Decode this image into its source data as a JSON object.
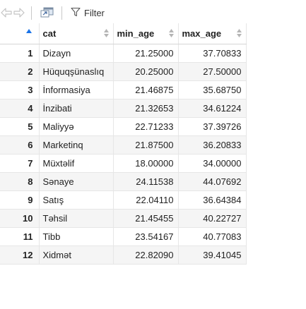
{
  "toolbar": {
    "filter_label": "Filter",
    "icons": [
      "back-arrow-icon",
      "forward-arrow-icon",
      "popout-window-icon",
      "filter-funnel-icon"
    ]
  },
  "table": {
    "columns": [
      "cat",
      "min_age",
      "max_age"
    ],
    "sorted_column_indicator": "row index ascending",
    "rows": [
      {
        "index": "1",
        "cat": "Dizayn",
        "min_age": "21.25000",
        "max_age": "37.70833"
      },
      {
        "index": "2",
        "cat": "Hüquqşünaslıq",
        "min_age": "20.25000",
        "max_age": "27.50000"
      },
      {
        "index": "3",
        "cat": "İnformasiya",
        "min_age": "21.46875",
        "max_age": "35.68750"
      },
      {
        "index": "4",
        "cat": "İnzibati",
        "min_age": "21.32653",
        "max_age": "34.61224"
      },
      {
        "index": "5",
        "cat": "Maliyyə",
        "min_age": "22.71233",
        "max_age": "37.39726"
      },
      {
        "index": "6",
        "cat": "Marketinq",
        "min_age": "21.87500",
        "max_age": "36.20833"
      },
      {
        "index": "7",
        "cat": "Müxtəlif",
        "min_age": "18.00000",
        "max_age": "34.00000"
      },
      {
        "index": "8",
        "cat": "Sənaye",
        "min_age": "24.11538",
        "max_age": "44.07692"
      },
      {
        "index": "9",
        "cat": "Satış",
        "min_age": "22.04110",
        "max_age": "36.64384"
      },
      {
        "index": "10",
        "cat": "Təhsil",
        "min_age": "21.45455",
        "max_age": "40.22727"
      },
      {
        "index": "11",
        "cat": "Tibb",
        "min_age": "23.54167",
        "max_age": "40.77083"
      },
      {
        "index": "12",
        "cat": "Xidmət",
        "min_age": "22.82090",
        "max_age": "39.41045"
      }
    ]
  },
  "colors": {
    "grid_line": "#e6e6e6",
    "alt_row": "#f5f5f5",
    "sort_arrow_active": "#1a73e8",
    "sort_arrow_inactive": "#b5b5b5"
  }
}
